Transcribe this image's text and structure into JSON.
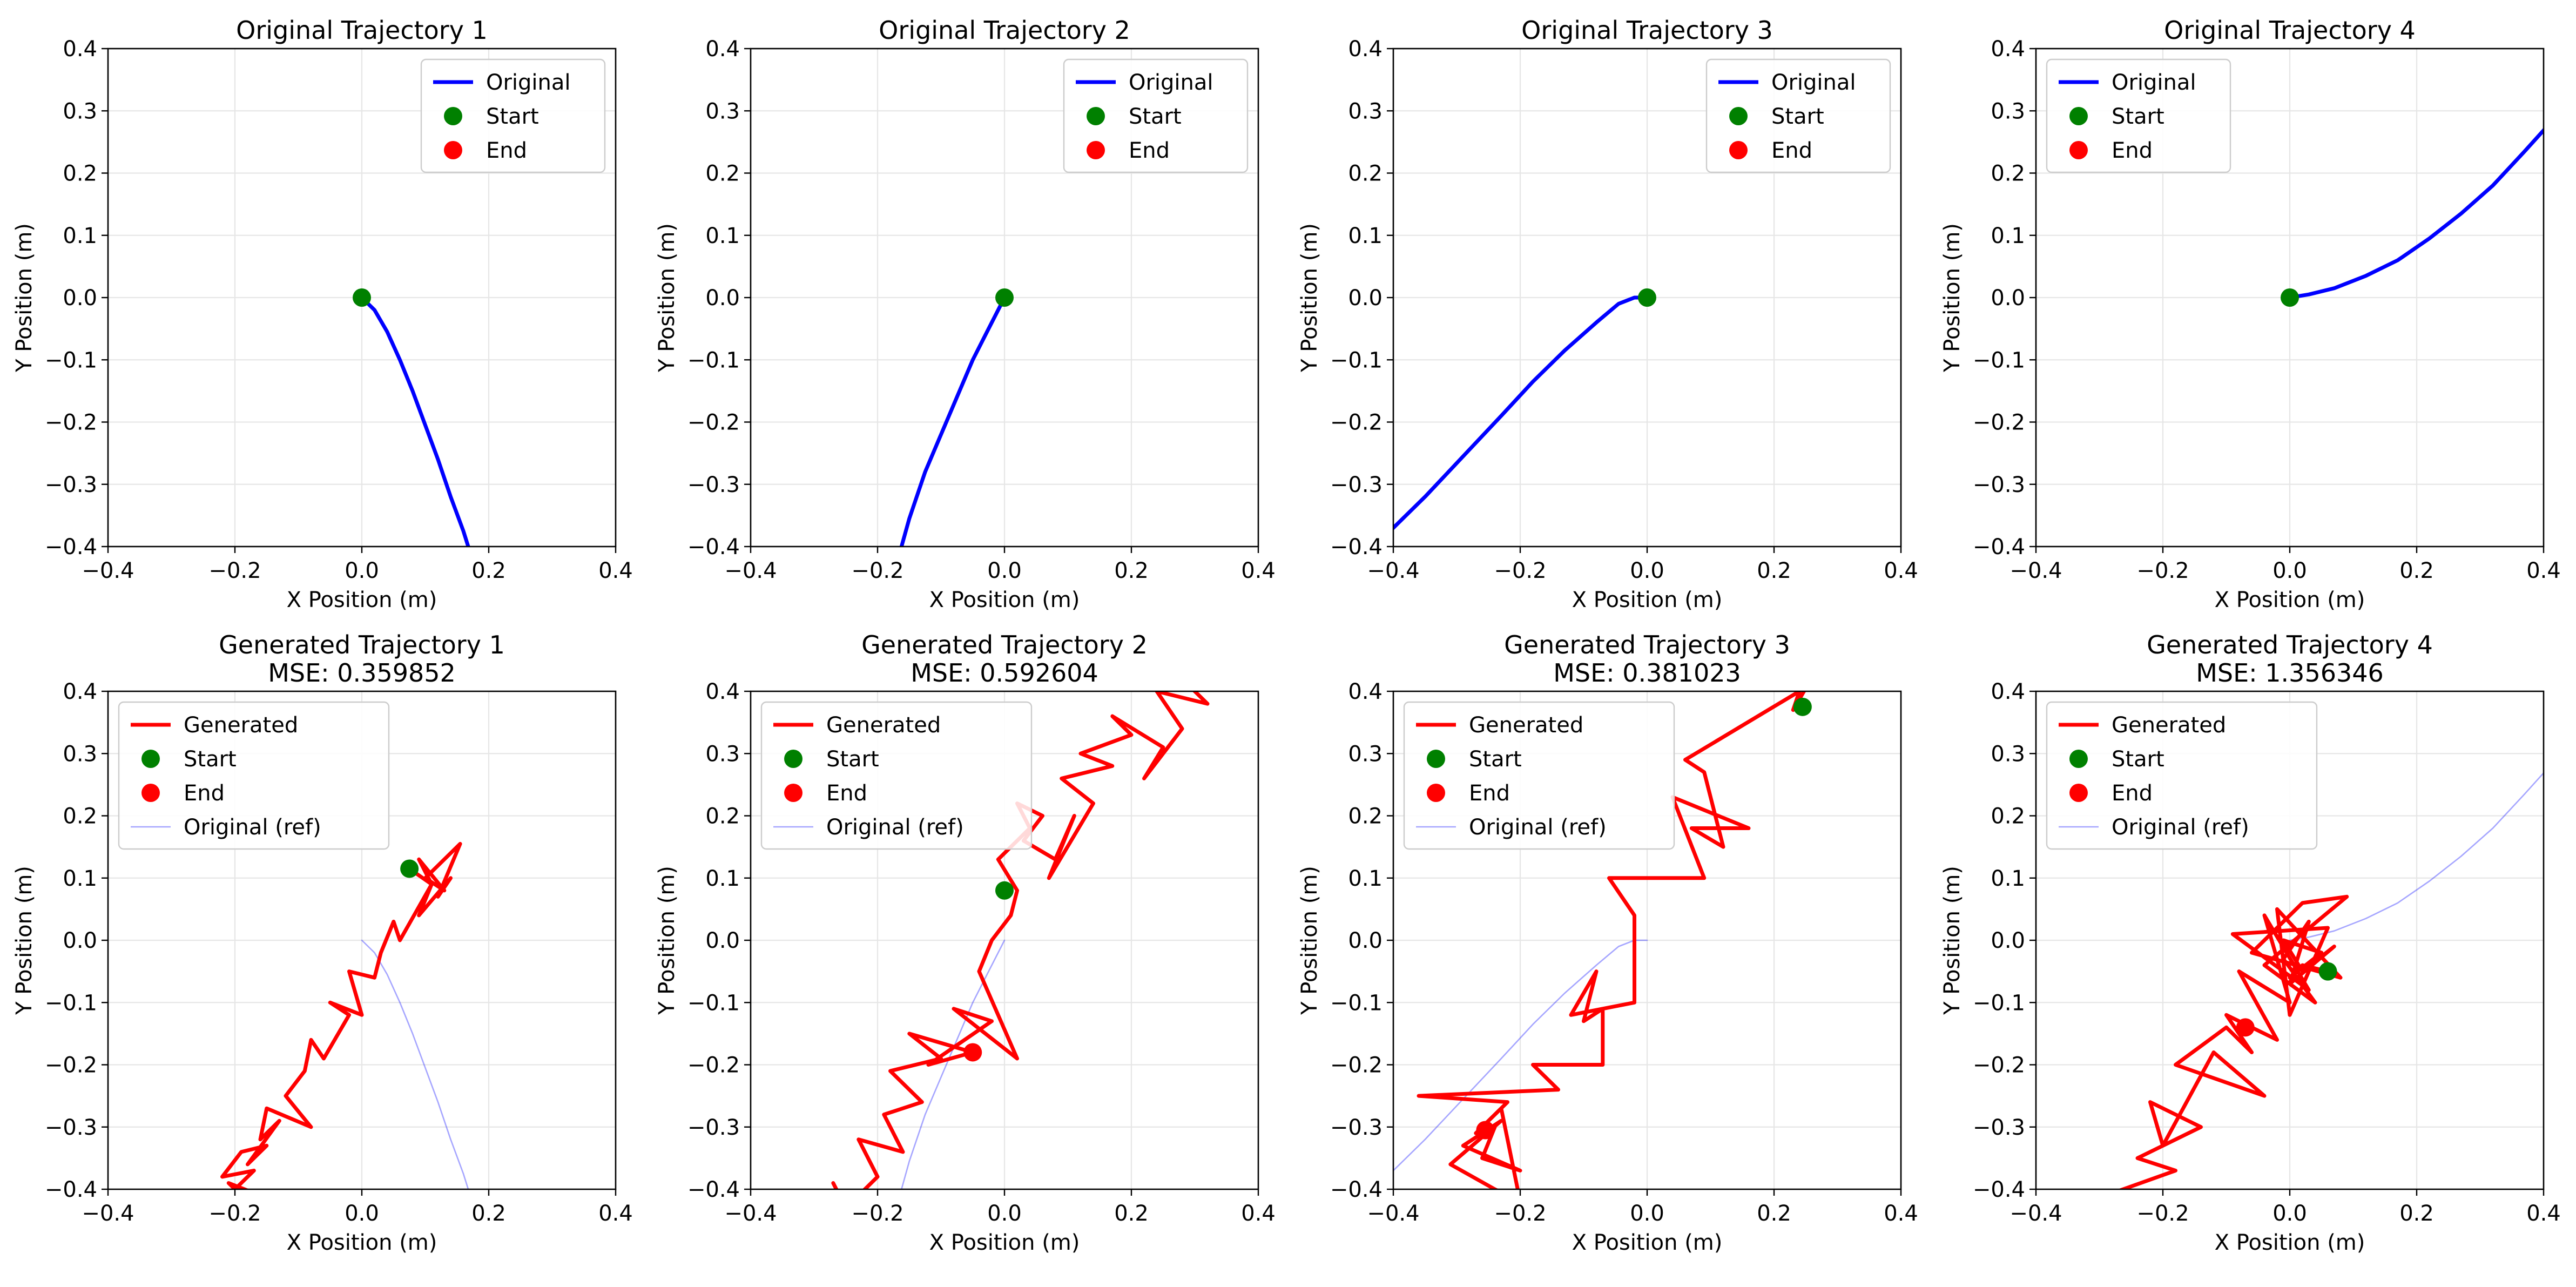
{
  "figure": {
    "panels": [
      {
        "id": "orig-1",
        "title": [
          "Original Trajectory 1"
        ],
        "xlabel": "X Position (m)",
        "ylabel": "Y Position (m)"
      },
      {
        "id": "orig-2",
        "title": [
          "Original Trajectory 2"
        ],
        "xlabel": "X Position (m)",
        "ylabel": "Y Position (m)"
      },
      {
        "id": "orig-3",
        "title": [
          "Original Trajectory 3"
        ],
        "xlabel": "X Position (m)",
        "ylabel": "Y Position (m)"
      },
      {
        "id": "orig-4",
        "title": [
          "Original Trajectory 4"
        ],
        "xlabel": "X Position (m)",
        "ylabel": "Y Position (m)"
      },
      {
        "id": "gen-1",
        "title": [
          "Generated Trajectory 1",
          "MSE: 0.359852"
        ],
        "xlabel": "X Position (m)",
        "ylabel": "Y Position (m)"
      },
      {
        "id": "gen-2",
        "title": [
          "Generated Trajectory 2",
          "MSE: 0.592604"
        ],
        "xlabel": "X Position (m)",
        "ylabel": "Y Position (m)"
      },
      {
        "id": "gen-3",
        "title": [
          "Generated Trajectory 3",
          "MSE: 0.381023"
        ],
        "xlabel": "X Position (m)",
        "ylabel": "Y Position (m)"
      },
      {
        "id": "gen-4",
        "title": [
          "Generated Trajectory 4",
          "MSE: 1.356346"
        ],
        "xlabel": "X Position (m)",
        "ylabel": "Y Position (m)"
      }
    ]
  },
  "chart_data": [
    {
      "type": "line",
      "title": "Original Trajectory 1",
      "xlabel": "X Position (m)",
      "ylabel": "Y Position (m)",
      "xlim": [
        -0.4,
        0.4
      ],
      "ylim": [
        -0.4,
        0.4
      ],
      "xticks": [
        "−0.4",
        "−0.2",
        "0.0",
        "0.2",
        "0.4"
      ],
      "yticks": [
        "−0.4",
        "−0.3",
        "−0.2",
        "−0.1",
        "0.0",
        "0.1",
        "0.2",
        "0.3",
        "0.4"
      ],
      "grid": true,
      "legend_position": "upper right",
      "legend": [
        "Original",
        "Start",
        "End"
      ],
      "series": [
        {
          "name": "Original",
          "color": "#0000ff",
          "width": "thick",
          "x": [
            0.0,
            0.02,
            0.04,
            0.06,
            0.08,
            0.1,
            0.12,
            0.14,
            0.16,
            0.18
          ],
          "y": [
            0.0,
            -0.02,
            -0.055,
            -0.1,
            -0.15,
            -0.205,
            -0.26,
            -0.32,
            -0.375,
            -0.44
          ]
        }
      ],
      "start": {
        "x": 0.0,
        "y": 0.0,
        "color": "#008000"
      },
      "end": null
    },
    {
      "type": "line",
      "title": "Original Trajectory 2",
      "xlabel": "X Position (m)",
      "ylabel": "Y Position (m)",
      "xlim": [
        -0.4,
        0.4
      ],
      "ylim": [
        -0.4,
        0.4
      ],
      "xticks": [
        "−0.4",
        "−0.2",
        "0.0",
        "0.2",
        "0.4"
      ],
      "yticks": [
        "−0.4",
        "−0.3",
        "−0.2",
        "−0.1",
        "0.0",
        "0.1",
        "0.2",
        "0.3",
        "0.4"
      ],
      "grid": true,
      "legend_position": "upper right",
      "legend": [
        "Original",
        "Start",
        "End"
      ],
      "series": [
        {
          "name": "Original",
          "color": "#0000ff",
          "width": "thick",
          "x": [
            0.0,
            -0.01,
            -0.025,
            -0.05,
            -0.075,
            -0.1,
            -0.125,
            -0.15,
            -0.165
          ],
          "y": [
            0.0,
            -0.02,
            -0.05,
            -0.1,
            -0.16,
            -0.22,
            -0.28,
            -0.355,
            -0.41
          ]
        }
      ],
      "start": {
        "x": 0.0,
        "y": 0.0,
        "color": "#008000"
      },
      "end": null
    },
    {
      "type": "line",
      "title": "Original Trajectory 3",
      "xlabel": "X Position (m)",
      "ylabel": "Y Position (m)",
      "xlim": [
        -0.4,
        0.4
      ],
      "ylim": [
        -0.4,
        0.4
      ],
      "xticks": [
        "−0.4",
        "−0.2",
        "0.0",
        "0.2",
        "0.4"
      ],
      "yticks": [
        "−0.4",
        "−0.3",
        "−0.2",
        "−0.1",
        "0.0",
        "0.1",
        "0.2",
        "0.3",
        "0.4"
      ],
      "grid": true,
      "legend_position": "upper right",
      "legend": [
        "Original",
        "Start",
        "End"
      ],
      "series": [
        {
          "name": "Original",
          "color": "#0000ff",
          "width": "thick",
          "x": [
            0.0,
            -0.02,
            -0.045,
            -0.08,
            -0.13,
            -0.18,
            -0.23,
            -0.29,
            -0.35,
            -0.42
          ],
          "y": [
            0.0,
            0.0,
            -0.01,
            -0.04,
            -0.085,
            -0.135,
            -0.19,
            -0.255,
            -0.32,
            -0.39
          ]
        }
      ],
      "start": {
        "x": 0.0,
        "y": 0.0,
        "color": "#008000"
      },
      "end": null
    },
    {
      "type": "line",
      "title": "Original Trajectory 4",
      "xlabel": "X Position (m)",
      "ylabel": "Y Position (m)",
      "xlim": [
        -0.4,
        0.4
      ],
      "ylim": [
        -0.4,
        0.4
      ],
      "xticks": [
        "−0.4",
        "−0.2",
        "0.0",
        "0.2",
        "0.4"
      ],
      "yticks": [
        "−0.4",
        "−0.3",
        "−0.2",
        "−0.1",
        "0.0",
        "0.1",
        "0.2",
        "0.3",
        "0.4"
      ],
      "grid": true,
      "legend_position": "upper left",
      "legend": [
        "Original",
        "Start",
        "End"
      ],
      "series": [
        {
          "name": "Original",
          "color": "#0000ff",
          "width": "thick",
          "x": [
            0.0,
            0.03,
            0.07,
            0.12,
            0.17,
            0.22,
            0.27,
            0.32,
            0.37,
            0.41
          ],
          "y": [
            0.0,
            0.005,
            0.015,
            0.035,
            0.06,
            0.095,
            0.135,
            0.18,
            0.235,
            0.28
          ]
        }
      ],
      "start": {
        "x": 0.0,
        "y": 0.0,
        "color": "#008000"
      },
      "end": null
    },
    {
      "type": "line",
      "title": "Generated Trajectory 1 MSE: 0.359852",
      "xlabel": "X Position (m)",
      "ylabel": "Y Position (m)",
      "xlim": [
        -0.4,
        0.4
      ],
      "ylim": [
        -0.4,
        0.4
      ],
      "xticks": [
        "−0.4",
        "−0.2",
        "0.0",
        "0.2",
        "0.4"
      ],
      "yticks": [
        "−0.4",
        "−0.3",
        "−0.2",
        "−0.1",
        "0.0",
        "0.1",
        "0.2",
        "0.3",
        "0.4"
      ],
      "grid": true,
      "legend_position": "upper left",
      "legend": [
        "Generated",
        "Start",
        "End",
        "Original (ref)"
      ],
      "series": [
        {
          "name": "Original (ref)",
          "color": "#0000ff",
          "width": "thin",
          "alpha": 0.35,
          "x": [
            0.0,
            0.02,
            0.04,
            0.06,
            0.08,
            0.1,
            0.12,
            0.14,
            0.16,
            0.18
          ],
          "y": [
            0.0,
            -0.02,
            -0.055,
            -0.1,
            -0.15,
            -0.205,
            -0.26,
            -0.32,
            -0.375,
            -0.44
          ]
        },
        {
          "name": "Generated",
          "color": "#ff0000",
          "width": "thick",
          "x": [
            0.075,
            0.11,
            0.09,
            0.13,
            0.1,
            0.155,
            0.12,
            0.14,
            0.09,
            0.11,
            0.06,
            0.05,
            0.03,
            0.02,
            -0.02,
            0.0,
            -0.05,
            -0.02,
            -0.06,
            -0.08,
            -0.09,
            -0.12,
            -0.08,
            -0.15,
            -0.16,
            -0.13,
            -0.18,
            -0.15,
            -0.19,
            -0.22,
            -0.17,
            -0.2,
            -0.16,
            -0.21,
            -0.18,
            -0.23
          ],
          "y": [
            0.115,
            0.09,
            0.13,
            0.08,
            0.1,
            0.155,
            0.07,
            0.1,
            0.04,
            0.09,
            0.0,
            0.03,
            -0.02,
            -0.06,
            -0.05,
            -0.12,
            -0.1,
            -0.12,
            -0.19,
            -0.16,
            -0.21,
            -0.25,
            -0.3,
            -0.27,
            -0.32,
            -0.29,
            -0.36,
            -0.33,
            -0.34,
            -0.38,
            -0.37,
            -0.4,
            -0.41,
            -0.39,
            -0.42,
            -0.44
          ]
        }
      ],
      "start": {
        "x": 0.075,
        "y": 0.115,
        "color": "#008000"
      },
      "end": null
    },
    {
      "type": "line",
      "title": "Generated Trajectory 2 MSE: 0.592604",
      "xlabel": "X Position (m)",
      "ylabel": "Y Position (m)",
      "xlim": [
        -0.4,
        0.4
      ],
      "ylim": [
        -0.4,
        0.4
      ],
      "xticks": [
        "−0.4",
        "−0.2",
        "0.0",
        "0.2",
        "0.4"
      ],
      "yticks": [
        "−0.4",
        "−0.3",
        "−0.2",
        "−0.1",
        "0.0",
        "0.1",
        "0.2",
        "0.3",
        "0.4"
      ],
      "grid": true,
      "legend_position": "upper left",
      "legend": [
        "Generated",
        "Start",
        "End",
        "Original (ref)"
      ],
      "series": [
        {
          "name": "Original (ref)",
          "color": "#0000ff",
          "width": "thin",
          "alpha": 0.35,
          "x": [
            0.0,
            -0.01,
            -0.025,
            -0.05,
            -0.075,
            -0.1,
            -0.125,
            -0.15,
            -0.165
          ],
          "y": [
            0.0,
            -0.02,
            -0.05,
            -0.1,
            -0.16,
            -0.22,
            -0.28,
            -0.355,
            -0.41
          ]
        },
        {
          "name": "Generated",
          "color": "#ff0000",
          "width": "thick",
          "x": [
            -0.27,
            -0.25,
            -0.2,
            -0.23,
            -0.16,
            -0.19,
            -0.13,
            -0.18,
            -0.1,
            -0.15,
            -0.05,
            -0.12,
            -0.02,
            -0.08,
            0.02,
            -0.04,
            -0.02,
            0.01,
            0.02,
            -0.01,
            0.04,
            0.02,
            0.06,
            0.03,
            0.08,
            0.11,
            0.07,
            0.14,
            0.09,
            0.17,
            0.12,
            0.2,
            0.17,
            0.25,
            0.22,
            0.28,
            0.24,
            0.32,
            0.28,
            0.34
          ],
          "y": [
            -0.39,
            -0.43,
            -0.38,
            -0.32,
            -0.34,
            -0.28,
            -0.26,
            -0.21,
            -0.19,
            -0.15,
            -0.18,
            -0.2,
            -0.13,
            -0.11,
            -0.19,
            -0.05,
            0.0,
            0.04,
            0.08,
            0.13,
            0.18,
            0.22,
            0.2,
            0.16,
            0.13,
            0.2,
            0.1,
            0.22,
            0.26,
            0.28,
            0.3,
            0.33,
            0.36,
            0.31,
            0.26,
            0.34,
            0.4,
            0.38,
            0.42,
            0.44
          ]
        }
      ],
      "start": {
        "x": 0.0,
        "y": 0.08,
        "color": "#008000"
      },
      "end": {
        "x": -0.05,
        "y": -0.18,
        "color": "#ff0000"
      }
    },
    {
      "type": "line",
      "title": "Generated Trajectory 3 MSE: 0.381023",
      "xlabel": "X Position (m)",
      "ylabel": "Y Position (m)",
      "xlim": [
        -0.4,
        0.4
      ],
      "ylim": [
        -0.4,
        0.4
      ],
      "xticks": [
        "−0.4",
        "−0.2",
        "0.0",
        "0.2",
        "0.4"
      ],
      "yticks": [
        "−0.4",
        "−0.3",
        "−0.2",
        "−0.1",
        "0.0",
        "0.1",
        "0.2",
        "0.3",
        "0.4"
      ],
      "grid": true,
      "legend_position": "upper left",
      "legend": [
        "Generated",
        "Start",
        "End",
        "Original (ref)"
      ],
      "series": [
        {
          "name": "Original (ref)",
          "color": "#0000ff",
          "width": "thin",
          "alpha": 0.35,
          "x": [
            0.0,
            -0.02,
            -0.045,
            -0.08,
            -0.13,
            -0.18,
            -0.23,
            -0.29,
            -0.35,
            -0.42
          ],
          "y": [
            0.0,
            0.0,
            -0.01,
            -0.04,
            -0.085,
            -0.135,
            -0.19,
            -0.255,
            -0.32,
            -0.39
          ]
        },
        {
          "name": "Generated",
          "color": "#ff0000",
          "width": "thick",
          "x": [
            -0.24,
            -0.26,
            -0.2,
            -0.29,
            -0.23,
            -0.31,
            -0.24,
            -0.2,
            -0.23,
            -0.27,
            -0.22,
            -0.36,
            -0.14,
            -0.18,
            -0.07,
            -0.07,
            -0.1,
            -0.08,
            -0.12,
            -0.02,
            -0.02,
            -0.06,
            0.09,
            0.04,
            0.16,
            0.07,
            0.12,
            0.09,
            0.06,
            0.24,
            0.23,
            0.27
          ],
          "y": [
            -0.3,
            -0.35,
            -0.37,
            -0.33,
            -0.29,
            -0.36,
            -0.4,
            -0.42,
            -0.27,
            -0.31,
            -0.26,
            -0.25,
            -0.24,
            -0.2,
            -0.2,
            -0.11,
            -0.13,
            -0.05,
            -0.12,
            -0.1,
            0.04,
            0.1,
            0.1,
            0.23,
            0.18,
            0.18,
            0.15,
            0.27,
            0.29,
            0.4,
            0.37,
            0.44
          ]
        }
      ],
      "start": {
        "x": 0.245,
        "y": 0.375,
        "color": "#008000"
      },
      "end": {
        "x": -0.255,
        "y": -0.305,
        "color": "#ff0000"
      }
    },
    {
      "type": "line",
      "title": "Generated Trajectory 4 MSE: 1.356346",
      "xlabel": "X Position (m)",
      "ylabel": "Y Position (m)",
      "xlim": [
        -0.4,
        0.4
      ],
      "ylim": [
        -0.4,
        0.4
      ],
      "xticks": [
        "−0.4",
        "−0.2",
        "0.0",
        "0.2",
        "0.4"
      ],
      "yticks": [
        "−0.4",
        "−0.3",
        "−0.2",
        "−0.1",
        "0.0",
        "0.1",
        "0.2",
        "0.3",
        "0.4"
      ],
      "grid": true,
      "legend_position": "upper left",
      "legend": [
        "Generated",
        "Start",
        "End",
        "Original (ref)"
      ],
      "series": [
        {
          "name": "Original (ref)",
          "color": "#0000ff",
          "width": "thin",
          "alpha": 0.35,
          "x": [
            0.0,
            0.03,
            0.07,
            0.12,
            0.17,
            0.22,
            0.27,
            0.32,
            0.37,
            0.41
          ],
          "y": [
            0.0,
            0.005,
            0.015,
            0.035,
            0.06,
            0.095,
            0.135,
            0.18,
            0.235,
            0.28
          ]
        },
        {
          "name": "Generated",
          "color": "#ff0000",
          "width": "thick",
          "x": [
            -0.29,
            -0.18,
            -0.24,
            -0.14,
            -0.22,
            -0.2,
            -0.12,
            -0.04,
            -0.18,
            -0.1,
            -0.06,
            -0.1,
            -0.02,
            -0.08,
            0.0,
            -0.04,
            0.03,
            -0.09,
            0.06,
            0.0,
            -0.02,
            0.08,
            -0.06,
            0.02,
            0.09,
            -0.04,
            0.04,
            -0.01,
            0.03,
            0.0,
            0.07,
            0.02,
            -0.01,
            0.05,
            0.0,
            0.02,
            0.06
          ],
          "y": [
            -0.41,
            -0.37,
            -0.35,
            -0.3,
            -0.26,
            -0.33,
            -0.18,
            -0.25,
            -0.2,
            -0.14,
            -0.18,
            -0.12,
            -0.16,
            -0.05,
            -0.1,
            0.04,
            -0.08,
            0.01,
            0.02,
            -0.12,
            0.05,
            -0.06,
            -0.02,
            0.06,
            0.07,
            -0.04,
            -0.1,
            -0.03,
            0.03,
            -0.07,
            -0.01,
            -0.05,
            0.0,
            -0.02,
            -0.06,
            -0.04,
            -0.05
          ]
        }
      ],
      "start": {
        "x": 0.06,
        "y": -0.05,
        "color": "#008000"
      },
      "end": {
        "x": -0.07,
        "y": -0.14,
        "color": "#ff0000"
      }
    }
  ]
}
